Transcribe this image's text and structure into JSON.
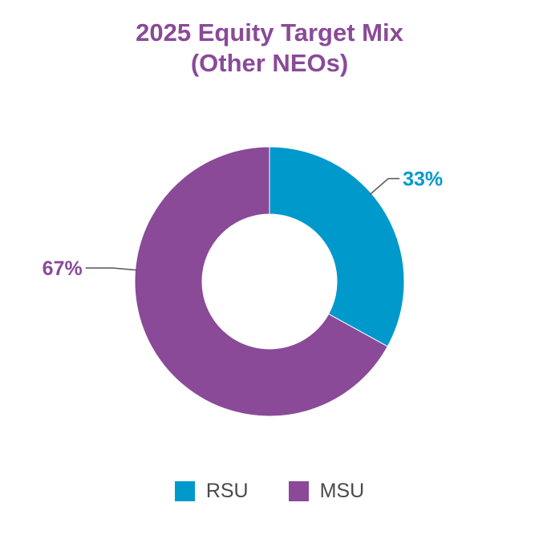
{
  "chart_data": {
    "type": "pie",
    "title_line1": "2025 Equity Target Mix",
    "title_line2": "(Other NEOs)",
    "series": [
      {
        "name": "RSU",
        "value": 33,
        "label": "33%",
        "color": "#0099cc"
      },
      {
        "name": "MSU",
        "value": 67,
        "label": "67%",
        "color": "#8a4a98"
      }
    ],
    "donut": true,
    "legend_position": "bottom"
  }
}
